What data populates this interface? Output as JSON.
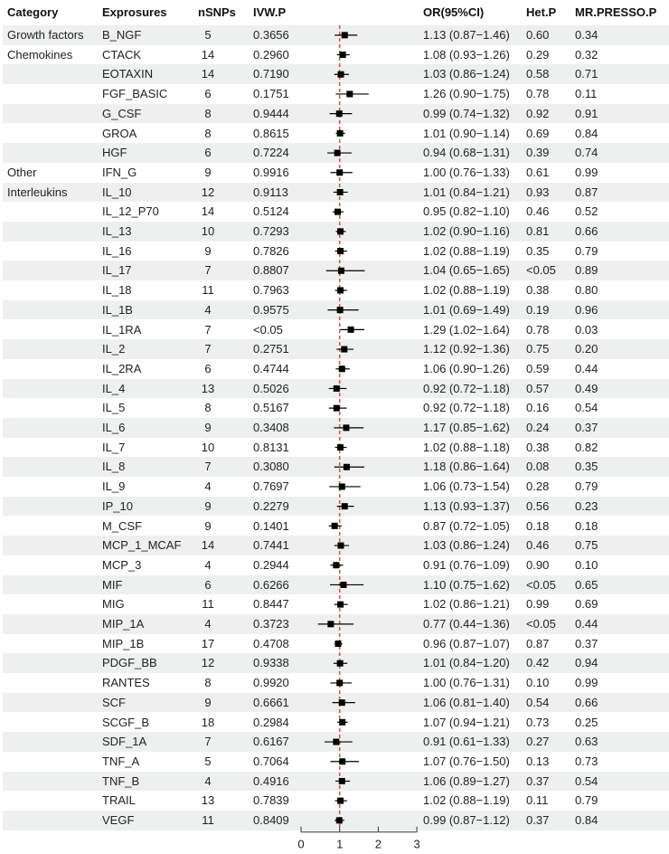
{
  "headers": {
    "category": "Category",
    "exposures": "Exprosures",
    "nsnps": "nSNPs",
    "ivwp": "IVW.P",
    "or": "OR(95%CI)",
    "hetp": "Het.P",
    "mrpresso": "MR.PRESSO.P"
  },
  "rows": [
    {
      "category": "Growth factors",
      "exposure": "B_NGF",
      "nsnps": "5",
      "ivwp": "0.3656",
      "or_text": "1.13 (0.87−1.46)",
      "or": 1.13,
      "lo": 0.87,
      "hi": 1.46,
      "hetp": "0.60",
      "mrp": "0.34"
    },
    {
      "category": "Chemokines",
      "exposure": "CTACK",
      "nsnps": "14",
      "ivwp": "0.2960",
      "or_text": "1.08 (0.93−1.26)",
      "or": 1.08,
      "lo": 0.93,
      "hi": 1.26,
      "hetp": "0.29",
      "mrp": "0.32"
    },
    {
      "category": "",
      "exposure": "EOTAXIN",
      "nsnps": "14",
      "ivwp": "0.7190",
      "or_text": "1.03 (0.86−1.24)",
      "or": 1.03,
      "lo": 0.86,
      "hi": 1.24,
      "hetp": "0.58",
      "mrp": "0.71"
    },
    {
      "category": "",
      "exposure": "FGF_BASIC",
      "nsnps": "6",
      "ivwp": "0.1751",
      "or_text": "1.26 (0.90−1.75)",
      "or": 1.26,
      "lo": 0.9,
      "hi": 1.75,
      "hetp": "0.78",
      "mrp": "0.11"
    },
    {
      "category": "",
      "exposure": "G_CSF",
      "nsnps": "8",
      "ivwp": "0.9444",
      "or_text": "0.99 (0.74−1.32)",
      "or": 0.99,
      "lo": 0.74,
      "hi": 1.32,
      "hetp": "0.92",
      "mrp": "0.91"
    },
    {
      "category": "",
      "exposure": "GROA",
      "nsnps": "8",
      "ivwp": "0.8615",
      "or_text": "1.01 (0.90−1.14)",
      "or": 1.01,
      "lo": 0.9,
      "hi": 1.14,
      "hetp": "0.69",
      "mrp": "0.84"
    },
    {
      "category": "",
      "exposure": "HGF",
      "nsnps": "6",
      "ivwp": "0.7224",
      "or_text": "0.94 (0.68−1.31)",
      "or": 0.94,
      "lo": 0.68,
      "hi": 1.31,
      "hetp": "0.39",
      "mrp": "0.74"
    },
    {
      "category": "Other",
      "exposure": "IFN_G",
      "nsnps": "9",
      "ivwp": "0.9916",
      "or_text": "1.00 (0.76−1.33)",
      "or": 1.0,
      "lo": 0.76,
      "hi": 1.33,
      "hetp": "0.61",
      "mrp": "0.99"
    },
    {
      "category": "Interleukins",
      "exposure": "IL_10",
      "nsnps": "12",
      "ivwp": "0.9113",
      "or_text": "1.01 (0.84−1.21)",
      "or": 1.01,
      "lo": 0.84,
      "hi": 1.21,
      "hetp": "0.93",
      "mrp": "0.87"
    },
    {
      "category": "",
      "exposure": "IL_12_P70",
      "nsnps": "14",
      "ivwp": "0.5124",
      "or_text": "0.95 (0.82−1.10)",
      "or": 0.95,
      "lo": 0.82,
      "hi": 1.1,
      "hetp": "0.46",
      "mrp": "0.52"
    },
    {
      "category": "",
      "exposure": "IL_13",
      "nsnps": "10",
      "ivwp": "0.7293",
      "or_text": "1.02 (0.90−1.16)",
      "or": 1.02,
      "lo": 0.9,
      "hi": 1.16,
      "hetp": "0.81",
      "mrp": "0.66"
    },
    {
      "category": "",
      "exposure": "IL_16",
      "nsnps": "9",
      "ivwp": "0.7826",
      "or_text": "1.02 (0.88−1.19)",
      "or": 1.02,
      "lo": 0.88,
      "hi": 1.19,
      "hetp": "0.35",
      "mrp": "0.79"
    },
    {
      "category": "",
      "exposure": "IL_17",
      "nsnps": "7",
      "ivwp": "0.8807",
      "or_text": "1.04 (0.65−1.65)",
      "or": 1.04,
      "lo": 0.65,
      "hi": 1.65,
      "hetp": "<0.05",
      "mrp": "0.89"
    },
    {
      "category": "",
      "exposure": "IL_18",
      "nsnps": "11",
      "ivwp": "0.7963",
      "or_text": "1.02 (0.88−1.19)",
      "or": 1.02,
      "lo": 0.88,
      "hi": 1.19,
      "hetp": "0.38",
      "mrp": "0.80"
    },
    {
      "category": "",
      "exposure": "IL_1B",
      "nsnps": "4",
      "ivwp": "0.9575",
      "or_text": "1.01 (0.69−1.49)",
      "or": 1.01,
      "lo": 0.69,
      "hi": 1.49,
      "hetp": "0.19",
      "mrp": "0.96"
    },
    {
      "category": "",
      "exposure": "IL_1RA",
      "nsnps": "7",
      "ivwp": "<0.05",
      "or_text": "1.29 (1.02−1.64)",
      "or": 1.29,
      "lo": 1.02,
      "hi": 1.64,
      "hetp": "0.78",
      "mrp": "0.03"
    },
    {
      "category": "",
      "exposure": "IL_2",
      "nsnps": "7",
      "ivwp": "0.2751",
      "or_text": "1.12 (0.92−1.36)",
      "or": 1.12,
      "lo": 0.92,
      "hi": 1.36,
      "hetp": "0.75",
      "mrp": "0.20"
    },
    {
      "category": "",
      "exposure": "IL_2RA",
      "nsnps": "6",
      "ivwp": "0.4744",
      "or_text": "1.06 (0.90−1.26)",
      "or": 1.06,
      "lo": 0.9,
      "hi": 1.26,
      "hetp": "0.59",
      "mrp": "0.44"
    },
    {
      "category": "",
      "exposure": "IL_4",
      "nsnps": "13",
      "ivwp": "0.5026",
      "or_text": "0.92 (0.72−1.18)",
      "or": 0.92,
      "lo": 0.72,
      "hi": 1.18,
      "hetp": "0.57",
      "mrp": "0.49"
    },
    {
      "category": "",
      "exposure": "IL_5",
      "nsnps": "8",
      "ivwp": "0.5167",
      "or_text": "0.92 (0.72−1.18)",
      "or": 0.92,
      "lo": 0.72,
      "hi": 1.18,
      "hetp": "0.16",
      "mrp": "0.54"
    },
    {
      "category": "",
      "exposure": "IL_6",
      "nsnps": "9",
      "ivwp": "0.3408",
      "or_text": "1.17 (0.85−1.62)",
      "or": 1.17,
      "lo": 0.85,
      "hi": 1.62,
      "hetp": "0.24",
      "mrp": "0.37"
    },
    {
      "category": "",
      "exposure": "IL_7",
      "nsnps": "10",
      "ivwp": "0.8131",
      "or_text": "1.02 (0.88−1.18)",
      "or": 1.02,
      "lo": 0.88,
      "hi": 1.18,
      "hetp": "0.38",
      "mrp": "0.82"
    },
    {
      "category": "",
      "exposure": "IL_8",
      "nsnps": "7",
      "ivwp": "0.3080",
      "or_text": "1.18 (0.86−1.64)",
      "or": 1.18,
      "lo": 0.86,
      "hi": 1.64,
      "hetp": "0.08",
      "mrp": "0.35"
    },
    {
      "category": "",
      "exposure": "IL_9",
      "nsnps": "4",
      "ivwp": "0.7697",
      "or_text": "1.06 (0.73−1.54)",
      "or": 1.06,
      "lo": 0.73,
      "hi": 1.54,
      "hetp": "0.28",
      "mrp": "0.79"
    },
    {
      "category": "",
      "exposure": "IP_10",
      "nsnps": "9",
      "ivwp": "0.2279",
      "or_text": "1.13 (0.93−1.37)",
      "or": 1.13,
      "lo": 0.93,
      "hi": 1.37,
      "hetp": "0.56",
      "mrp": "0.23"
    },
    {
      "category": "",
      "exposure": "M_CSF",
      "nsnps": "9",
      "ivwp": "0.1401",
      "or_text": "0.87 (0.72−1.05)",
      "or": 0.87,
      "lo": 0.72,
      "hi": 1.05,
      "hetp": "0.18",
      "mrp": "0.18"
    },
    {
      "category": "",
      "exposure": "MCP_1_MCAF",
      "nsnps": "14",
      "ivwp": "0.7441",
      "or_text": "1.03 (0.86−1.24)",
      "or": 1.03,
      "lo": 0.86,
      "hi": 1.24,
      "hetp": "0.46",
      "mrp": "0.75"
    },
    {
      "category": "",
      "exposure": "MCP_3",
      "nsnps": "4",
      "ivwp": "0.2944",
      "or_text": "0.91 (0.76−1.09)",
      "or": 0.91,
      "lo": 0.76,
      "hi": 1.09,
      "hetp": "0.90",
      "mrp": "0.10"
    },
    {
      "category": "",
      "exposure": "MIF",
      "nsnps": "6",
      "ivwp": "0.6266",
      "or_text": "1.10 (0.75−1.62)",
      "or": 1.1,
      "lo": 0.75,
      "hi": 1.62,
      "hetp": "<0.05",
      "mrp": "0.65"
    },
    {
      "category": "",
      "exposure": "MIG",
      "nsnps": "11",
      "ivwp": "0.8447",
      "or_text": "1.02 (0.86−1.21)",
      "or": 1.02,
      "lo": 0.86,
      "hi": 1.21,
      "hetp": "0.99",
      "mrp": "0.69"
    },
    {
      "category": "",
      "exposure": "MIP_1A",
      "nsnps": "4",
      "ivwp": "0.3723",
      "or_text": "0.77 (0.44−1.36)",
      "or": 0.77,
      "lo": 0.44,
      "hi": 1.36,
      "hetp": "<0.05",
      "mrp": "0.44"
    },
    {
      "category": "",
      "exposure": "MIP_1B",
      "nsnps": "17",
      "ivwp": "0.4708",
      "or_text": "0.96 (0.87−1.07)",
      "or": 0.96,
      "lo": 0.87,
      "hi": 1.07,
      "hetp": "0.87",
      "mrp": "0.37"
    },
    {
      "category": "",
      "exposure": "PDGF_BB",
      "nsnps": "12",
      "ivwp": "0.9338",
      "or_text": "1.01 (0.84−1.20)",
      "or": 1.01,
      "lo": 0.84,
      "hi": 1.2,
      "hetp": "0.42",
      "mrp": "0.94"
    },
    {
      "category": "",
      "exposure": "RANTES",
      "nsnps": "8",
      "ivwp": "0.9920",
      "or_text": "1.00 (0.76−1.31)",
      "or": 1.0,
      "lo": 0.76,
      "hi": 1.31,
      "hetp": "0.10",
      "mrp": "0.99"
    },
    {
      "category": "",
      "exposure": "SCF",
      "nsnps": "9",
      "ivwp": "0.6661",
      "or_text": "1.06 (0.81−1.40)",
      "or": 1.06,
      "lo": 0.81,
      "hi": 1.4,
      "hetp": "0.54",
      "mrp": "0.66"
    },
    {
      "category": "",
      "exposure": "SCGF_B",
      "nsnps": "18",
      "ivwp": "0.2984",
      "or_text": "1.07 (0.94−1.21)",
      "or": 1.07,
      "lo": 0.94,
      "hi": 1.21,
      "hetp": "0.73",
      "mrp": "0.25"
    },
    {
      "category": "",
      "exposure": "SDF_1A",
      "nsnps": "7",
      "ivwp": "0.6167",
      "or_text": "0.91 (0.61−1.33)",
      "or": 0.91,
      "lo": 0.61,
      "hi": 1.33,
      "hetp": "0.27",
      "mrp": "0.63"
    },
    {
      "category": "",
      "exposure": "TNF_A",
      "nsnps": "5",
      "ivwp": "0.7064",
      "or_text": "1.07 (0.76−1.50)",
      "or": 1.07,
      "lo": 0.76,
      "hi": 1.5,
      "hetp": "0.13",
      "mrp": "0.73"
    },
    {
      "category": "",
      "exposure": "TNF_B",
      "nsnps": "4",
      "ivwp": "0.4916",
      "or_text": "1.06 (0.89−1.27)",
      "or": 1.06,
      "lo": 0.89,
      "hi": 1.27,
      "hetp": "0.37",
      "mrp": "0.54"
    },
    {
      "category": "",
      "exposure": "TRAIL",
      "nsnps": "13",
      "ivwp": "0.7839",
      "or_text": "1.02 (0.88−1.19)",
      "or": 1.02,
      "lo": 0.88,
      "hi": 1.19,
      "hetp": "0.11",
      "mrp": "0.79"
    },
    {
      "category": "",
      "exposure": "VEGF",
      "nsnps": "11",
      "ivwp": "0.8409",
      "or_text": "0.99 (0.87−1.12)",
      "or": 0.99,
      "lo": 0.87,
      "hi": 1.12,
      "hetp": "0.37",
      "mrp": "0.84"
    }
  ],
  "axis": {
    "ticks": [
      0,
      1,
      2,
      3
    ],
    "tick_labels": [
      "0",
      "1",
      "2",
      "3"
    ],
    "reference_line": 1
  },
  "colors": {
    "stripe": "#eef0f0",
    "reference_line": "#d9534f",
    "marker": "#000000",
    "ci_line": "#000000"
  },
  "chart_data": {
    "type": "forest",
    "title": "",
    "xlabel": "",
    "ylabel": "",
    "xlim": [
      0,
      3
    ],
    "x_ticks": [
      0,
      1,
      2,
      3
    ],
    "reference_line": 1,
    "grid": false,
    "columns": [
      "Category",
      "Exprosures",
      "nSNPs",
      "IVW.P",
      "OR(95%CI)",
      "Het.P",
      "MR.PRESSO.P"
    ],
    "categories": [
      "B_NGF",
      "CTACK",
      "EOTAXIN",
      "FGF_BASIC",
      "G_CSF",
      "GROA",
      "HGF",
      "IFN_G",
      "IL_10",
      "IL_12_P70",
      "IL_13",
      "IL_16",
      "IL_17",
      "IL_18",
      "IL_1B",
      "IL_1RA",
      "IL_2",
      "IL_2RA",
      "IL_4",
      "IL_5",
      "IL_6",
      "IL_7",
      "IL_8",
      "IL_9",
      "IP_10",
      "M_CSF",
      "MCP_1_MCAF",
      "MCP_3",
      "MIF",
      "MIG",
      "MIP_1A",
      "MIP_1B",
      "PDGF_BB",
      "RANTES",
      "SCF",
      "SCGF_B",
      "SDF_1A",
      "TNF_A",
      "TNF_B",
      "TRAIL",
      "VEGF"
    ],
    "series": [
      {
        "name": "OR",
        "values": [
          1.13,
          1.08,
          1.03,
          1.26,
          0.99,
          1.01,
          0.94,
          1.0,
          1.01,
          0.95,
          1.02,
          1.02,
          1.04,
          1.02,
          1.01,
          1.29,
          1.12,
          1.06,
          0.92,
          0.92,
          1.17,
          1.02,
          1.18,
          1.06,
          1.13,
          0.87,
          1.03,
          0.91,
          1.1,
          1.02,
          0.77,
          0.96,
          1.01,
          1.0,
          1.06,
          1.07,
          0.91,
          1.07,
          1.06,
          1.02,
          0.99
        ]
      },
      {
        "name": "CI_lower",
        "values": [
          0.87,
          0.93,
          0.86,
          0.9,
          0.74,
          0.9,
          0.68,
          0.76,
          0.84,
          0.82,
          0.9,
          0.88,
          0.65,
          0.88,
          0.69,
          1.02,
          0.92,
          0.9,
          0.72,
          0.72,
          0.85,
          0.88,
          0.86,
          0.73,
          0.93,
          0.72,
          0.86,
          0.76,
          0.75,
          0.86,
          0.44,
          0.87,
          0.84,
          0.76,
          0.81,
          0.94,
          0.61,
          0.76,
          0.89,
          0.88,
          0.87
        ]
      },
      {
        "name": "CI_upper",
        "values": [
          1.46,
          1.26,
          1.24,
          1.75,
          1.32,
          1.14,
          1.31,
          1.33,
          1.21,
          1.1,
          1.16,
          1.19,
          1.65,
          1.19,
          1.49,
          1.64,
          1.36,
          1.26,
          1.18,
          1.18,
          1.62,
          1.18,
          1.64,
          1.54,
          1.37,
          1.05,
          1.24,
          1.09,
          1.62,
          1.21,
          1.36,
          1.07,
          1.2,
          1.31,
          1.4,
          1.21,
          1.33,
          1.5,
          1.27,
          1.19,
          1.12
        ]
      }
    ]
  }
}
